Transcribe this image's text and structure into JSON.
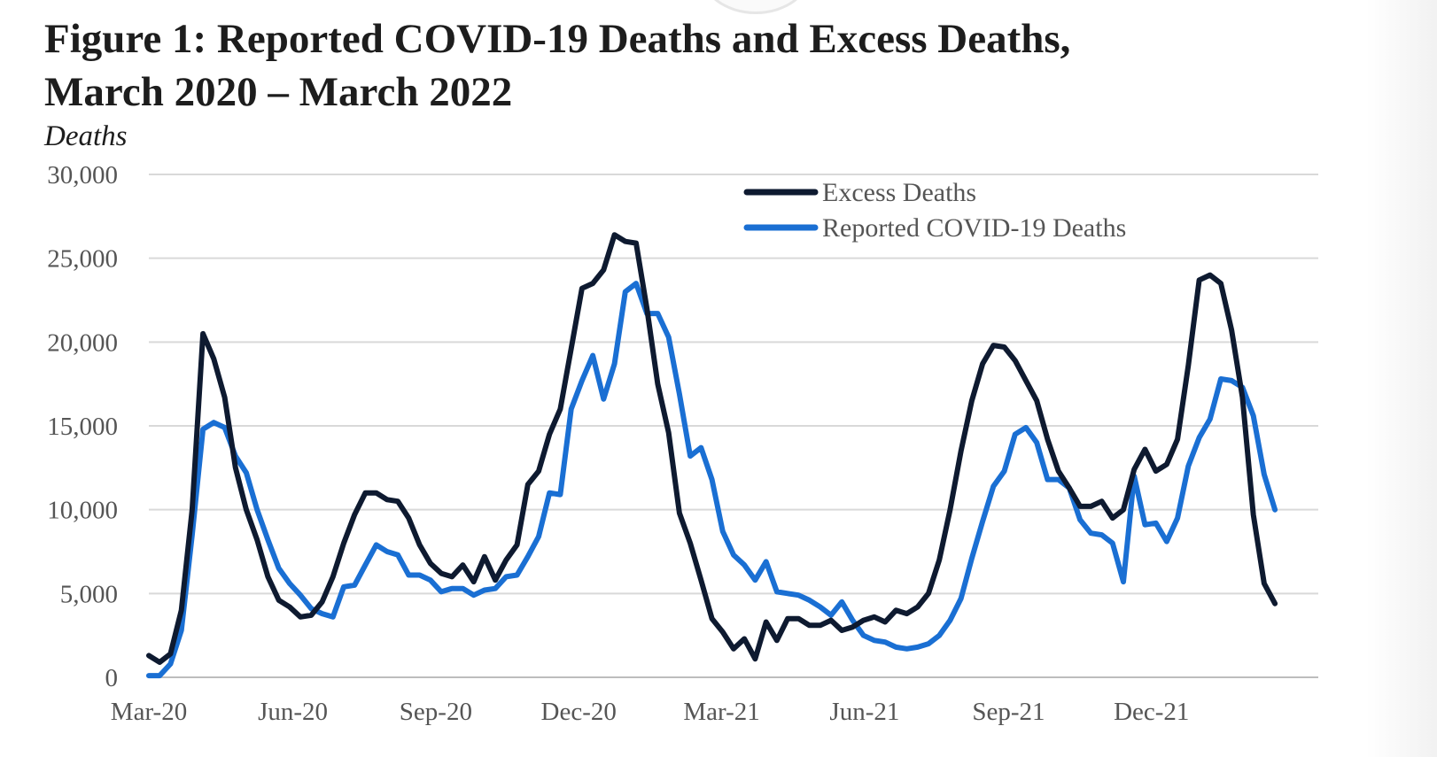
{
  "chart_data": {
    "type": "line",
    "title": "Figure 1: Reported COVID-19 Deaths and Excess Deaths,",
    "title_line2": "March 2020 – March 2022",
    "ylabel": "Deaths",
    "xlabel": "",
    "ylim": [
      0,
      30000
    ],
    "y_ticks": [
      {
        "value": 0,
        "label": "0"
      },
      {
        "value": 5000,
        "label": "5,000"
      },
      {
        "value": 10000,
        "label": "10,000"
      },
      {
        "value": 15000,
        "label": "15,000"
      },
      {
        "value": 20000,
        "label": "20,000"
      },
      {
        "value": 25000,
        "label": "25,000"
      },
      {
        "value": 30000,
        "label": "30,000"
      }
    ],
    "x_range": [
      0,
      108
    ],
    "x_ticks": [
      {
        "index": 0,
        "label": "Mar-20"
      },
      {
        "index": 13.3,
        "label": "Jun-20"
      },
      {
        "index": 26.5,
        "label": "Sep-20"
      },
      {
        "index": 39.7,
        "label": "Dec-20"
      },
      {
        "index": 52.9,
        "label": "Mar-21"
      },
      {
        "index": 66.1,
        "label": "Jun-21"
      },
      {
        "index": 79.4,
        "label": "Sep-21"
      },
      {
        "index": 92.6,
        "label": "Dec-21"
      }
    ],
    "grid": true,
    "legend_position": "top-right",
    "series": [
      {
        "name": "Excess Deaths",
        "color": "#0e1a30",
        "points": [
          [
            0,
            1300
          ],
          [
            1,
            900
          ],
          [
            2,
            1400
          ],
          [
            3,
            4000
          ],
          [
            4,
            10000
          ],
          [
            5,
            20500
          ],
          [
            6,
            19000
          ],
          [
            7,
            16700
          ],
          [
            8,
            12500
          ],
          [
            9,
            10000
          ],
          [
            10,
            8200
          ],
          [
            11,
            6000
          ],
          [
            12,
            4600
          ],
          [
            13,
            4200
          ],
          [
            14,
            3600
          ],
          [
            15,
            3700
          ],
          [
            16,
            4500
          ],
          [
            17,
            6000
          ],
          [
            18,
            8000
          ],
          [
            19,
            9700
          ],
          [
            20,
            11000
          ],
          [
            21,
            11000
          ],
          [
            22,
            10600
          ],
          [
            23,
            10500
          ],
          [
            24,
            9500
          ],
          [
            25,
            7900
          ],
          [
            26,
            6800
          ],
          [
            27,
            6200
          ],
          [
            28,
            6000
          ],
          [
            29,
            6700
          ],
          [
            30,
            5700
          ],
          [
            31,
            7200
          ],
          [
            32,
            5800
          ],
          [
            33,
            7000
          ],
          [
            34,
            7900
          ],
          [
            35,
            11500
          ],
          [
            36,
            12300
          ],
          [
            37,
            14500
          ],
          [
            38,
            16000
          ],
          [
            39,
            19600
          ],
          [
            40,
            23200
          ],
          [
            41,
            23500
          ],
          [
            42,
            24300
          ],
          [
            43,
            26400
          ],
          [
            44,
            26000
          ],
          [
            45,
            25900
          ],
          [
            46,
            22000
          ],
          [
            47,
            17500
          ],
          [
            48,
            14600
          ],
          [
            49,
            9800
          ],
          [
            50,
            8000
          ],
          [
            51,
            5800
          ],
          [
            52,
            3500
          ],
          [
            53,
            2700
          ],
          [
            54,
            1700
          ],
          [
            55,
            2300
          ],
          [
            56,
            1100
          ],
          [
            57,
            3300
          ],
          [
            58,
            2200
          ],
          [
            59,
            3500
          ],
          [
            60,
            3500
          ],
          [
            61,
            3100
          ],
          [
            62,
            3100
          ],
          [
            63,
            3400
          ],
          [
            64,
            2800
          ],
          [
            65,
            3000
          ],
          [
            66,
            3400
          ],
          [
            67,
            3600
          ],
          [
            68,
            3300
          ],
          [
            69,
            4000
          ],
          [
            70,
            3800
          ],
          [
            71,
            4200
          ],
          [
            72,
            5000
          ],
          [
            73,
            7000
          ],
          [
            74,
            10000
          ],
          [
            75,
            13500
          ],
          [
            76,
            16500
          ],
          [
            77,
            18700
          ],
          [
            78,
            19800
          ],
          [
            79,
            19700
          ],
          [
            80,
            18900
          ],
          [
            81,
            17700
          ],
          [
            82,
            16500
          ],
          [
            83,
            14200
          ],
          [
            84,
            12300
          ],
          [
            85,
            11300
          ],
          [
            86,
            10200
          ],
          [
            87,
            10200
          ],
          [
            88,
            10500
          ],
          [
            89,
            9500
          ],
          [
            90,
            10000
          ],
          [
            91,
            12400
          ],
          [
            92,
            13600
          ],
          [
            93,
            12300
          ],
          [
            94,
            12700
          ],
          [
            95,
            14200
          ],
          [
            96,
            18600
          ],
          [
            97,
            23700
          ],
          [
            98,
            24000
          ],
          [
            99,
            23500
          ],
          [
            100,
            20700
          ],
          [
            101,
            16700
          ],
          [
            102,
            9700
          ],
          [
            103,
            5600
          ],
          [
            104,
            4400
          ]
        ]
      },
      {
        "name": "Reported COVID-19 Deaths",
        "color": "#1a6fd3",
        "points": [
          [
            0,
            100
          ],
          [
            1,
            100
          ],
          [
            2,
            800
          ],
          [
            3,
            2800
          ],
          [
            4,
            8500
          ],
          [
            5,
            14800
          ],
          [
            6,
            15200
          ],
          [
            7,
            14900
          ],
          [
            8,
            13200
          ],
          [
            9,
            12200
          ],
          [
            10,
            10000
          ],
          [
            11,
            8200
          ],
          [
            12,
            6500
          ],
          [
            13,
            5600
          ],
          [
            14,
            4900
          ],
          [
            15,
            4100
          ],
          [
            16,
            3800
          ],
          [
            17,
            3600
          ],
          [
            18,
            5400
          ],
          [
            19,
            5500
          ],
          [
            20,
            6700
          ],
          [
            21,
            7900
          ],
          [
            22,
            7500
          ],
          [
            23,
            7300
          ],
          [
            24,
            6100
          ],
          [
            25,
            6100
          ],
          [
            26,
            5800
          ],
          [
            27,
            5100
          ],
          [
            28,
            5300
          ],
          [
            29,
            5300
          ],
          [
            30,
            4900
          ],
          [
            31,
            5200
          ],
          [
            32,
            5300
          ],
          [
            33,
            6000
          ],
          [
            34,
            6100
          ],
          [
            35,
            7200
          ],
          [
            36,
            8400
          ],
          [
            37,
            11000
          ],
          [
            38,
            10900
          ],
          [
            39,
            16000
          ],
          [
            40,
            17700
          ],
          [
            41,
            19200
          ],
          [
            42,
            16600
          ],
          [
            43,
            18700
          ],
          [
            44,
            23000
          ],
          [
            45,
            23500
          ],
          [
            46,
            21700
          ],
          [
            47,
            21700
          ],
          [
            48,
            20300
          ],
          [
            49,
            16900
          ],
          [
            50,
            13200
          ],
          [
            51,
            13700
          ],
          [
            52,
            11800
          ],
          [
            53,
            8700
          ],
          [
            54,
            7300
          ],
          [
            55,
            6700
          ],
          [
            56,
            5800
          ],
          [
            57,
            6900
          ],
          [
            58,
            5100
          ],
          [
            59,
            5000
          ],
          [
            60,
            4900
          ],
          [
            61,
            4600
          ],
          [
            62,
            4200
          ],
          [
            63,
            3700
          ],
          [
            64,
            4500
          ],
          [
            65,
            3400
          ],
          [
            66,
            2500
          ],
          [
            67,
            2200
          ],
          [
            68,
            2100
          ],
          [
            69,
            1800
          ],
          [
            70,
            1700
          ],
          [
            71,
            1800
          ],
          [
            72,
            2000
          ],
          [
            73,
            2500
          ],
          [
            74,
            3400
          ],
          [
            75,
            4700
          ],
          [
            76,
            7100
          ],
          [
            77,
            9300
          ],
          [
            78,
            11400
          ],
          [
            79,
            12300
          ],
          [
            80,
            14500
          ],
          [
            81,
            14900
          ],
          [
            82,
            14000
          ],
          [
            83,
            11800
          ],
          [
            84,
            11800
          ],
          [
            85,
            11300
          ],
          [
            86,
            9400
          ],
          [
            87,
            8600
          ],
          [
            88,
            8500
          ],
          [
            89,
            8000
          ],
          [
            90,
            5700
          ],
          [
            91,
            12000
          ],
          [
            92,
            9100
          ],
          [
            93,
            9200
          ],
          [
            94,
            8100
          ],
          [
            95,
            9500
          ],
          [
            96,
            12600
          ],
          [
            97,
            14300
          ],
          [
            98,
            15400
          ],
          [
            99,
            17800
          ],
          [
            100,
            17700
          ],
          [
            101,
            17300
          ],
          [
            102,
            15600
          ],
          [
            103,
            12100
          ],
          [
            104,
            10000
          ]
        ]
      }
    ]
  }
}
